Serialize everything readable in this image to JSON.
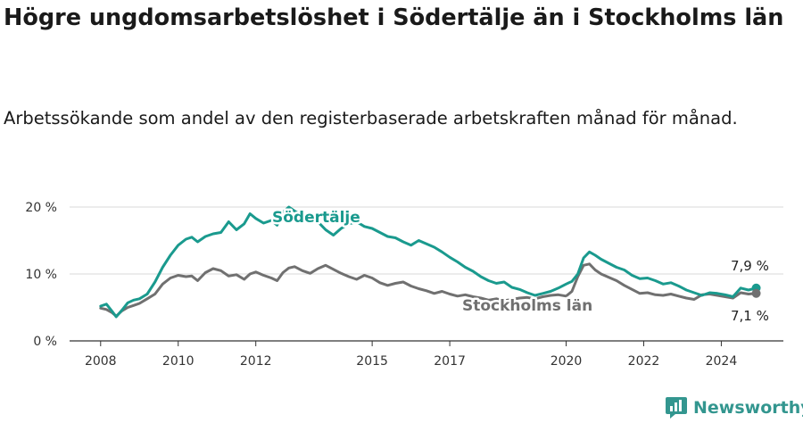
{
  "title": "Högre ungdomsarbetslöshet i Södertälje än i Stockholms län",
  "subtitle": "Arbetssökande som andel av den registerbaserade arbetskraften månad för månad.",
  "brand": {
    "name": "Newsworthy",
    "color": "#33968f"
  },
  "chart_data": {
    "type": "line",
    "y_tick_labels": [
      "0 %",
      "10 %",
      "20 %"
    ],
    "y_ticks": [
      0,
      10,
      20
    ],
    "x_tick_labels": [
      "2008",
      "2010",
      "2012",
      "2015",
      "2017",
      "2020",
      "2022",
      "2024"
    ],
    "x_ticks": [
      2008,
      2010,
      2012,
      2015,
      2017,
      2020,
      2022,
      2024
    ],
    "xlim": [
      2007.2,
      2025.6
    ],
    "ylim": [
      0,
      20
    ],
    "grid": true,
    "series": [
      {
        "name": "Södertälje",
        "color": "#1a9a8e",
        "end_label": "7,9 %",
        "points": [
          [
            2008.0,
            5.2
          ],
          [
            2008.15,
            5.5
          ],
          [
            2008.3,
            4.4
          ],
          [
            2008.4,
            3.6
          ],
          [
            2008.55,
            4.6
          ],
          [
            2008.7,
            5.7
          ],
          [
            2008.85,
            6.1
          ],
          [
            2009.0,
            6.3
          ],
          [
            2009.2,
            7.0
          ],
          [
            2009.4,
            8.8
          ],
          [
            2009.6,
            11.0
          ],
          [
            2009.8,
            12.8
          ],
          [
            2010.0,
            14.3
          ],
          [
            2010.2,
            15.2
          ],
          [
            2010.35,
            15.5
          ],
          [
            2010.5,
            14.8
          ],
          [
            2010.7,
            15.6
          ],
          [
            2010.9,
            16.0
          ],
          [
            2011.1,
            16.2
          ],
          [
            2011.3,
            17.8
          ],
          [
            2011.5,
            16.6
          ],
          [
            2011.7,
            17.5
          ],
          [
            2011.85,
            19.0
          ],
          [
            2012.0,
            18.3
          ],
          [
            2012.2,
            17.6
          ],
          [
            2012.4,
            18.0
          ],
          [
            2012.55,
            17.3
          ],
          [
            2012.7,
            19.2
          ],
          [
            2012.85,
            20.0
          ],
          [
            2013.0,
            19.4
          ],
          [
            2013.2,
            18.7
          ],
          [
            2013.4,
            18.2
          ],
          [
            2013.6,
            17.8
          ],
          [
            2013.8,
            16.6
          ],
          [
            2014.0,
            15.8
          ],
          [
            2014.2,
            16.8
          ],
          [
            2014.4,
            17.5
          ],
          [
            2014.6,
            17.8
          ],
          [
            2014.8,
            17.1
          ],
          [
            2015.0,
            16.8
          ],
          [
            2015.2,
            16.2
          ],
          [
            2015.4,
            15.6
          ],
          [
            2015.6,
            15.4
          ],
          [
            2015.8,
            14.8
          ],
          [
            2016.0,
            14.3
          ],
          [
            2016.2,
            15.0
          ],
          [
            2016.4,
            14.5
          ],
          [
            2016.6,
            14.0
          ],
          [
            2016.8,
            13.3
          ],
          [
            2017.0,
            12.5
          ],
          [
            2017.2,
            11.8
          ],
          [
            2017.4,
            11.0
          ],
          [
            2017.6,
            10.4
          ],
          [
            2017.8,
            9.6
          ],
          [
            2018.0,
            9.0
          ],
          [
            2018.2,
            8.6
          ],
          [
            2018.4,
            8.8
          ],
          [
            2018.6,
            8.0
          ],
          [
            2018.8,
            7.7
          ],
          [
            2019.0,
            7.2
          ],
          [
            2019.2,
            6.8
          ],
          [
            2019.4,
            7.1
          ],
          [
            2019.6,
            7.4
          ],
          [
            2019.8,
            7.9
          ],
          [
            2020.0,
            8.5
          ],
          [
            2020.15,
            8.9
          ],
          [
            2020.3,
            10.0
          ],
          [
            2020.45,
            12.4
          ],
          [
            2020.6,
            13.3
          ],
          [
            2020.75,
            12.8
          ],
          [
            2020.9,
            12.2
          ],
          [
            2021.1,
            11.6
          ],
          [
            2021.3,
            11.0
          ],
          [
            2021.5,
            10.6
          ],
          [
            2021.7,
            9.8
          ],
          [
            2021.9,
            9.3
          ],
          [
            2022.1,
            9.4
          ],
          [
            2022.3,
            9.0
          ],
          [
            2022.5,
            8.5
          ],
          [
            2022.7,
            8.7
          ],
          [
            2022.9,
            8.2
          ],
          [
            2023.1,
            7.6
          ],
          [
            2023.3,
            7.2
          ],
          [
            2023.5,
            6.8
          ],
          [
            2023.7,
            7.2
          ],
          [
            2023.9,
            7.1
          ],
          [
            2024.1,
            6.9
          ],
          [
            2024.3,
            6.6
          ],
          [
            2024.5,
            7.9
          ],
          [
            2024.7,
            7.6
          ],
          [
            2024.9,
            7.9
          ]
        ]
      },
      {
        "name": "Stockholms län",
        "color": "#707070",
        "end_label": "7,1 %",
        "points": [
          [
            2008.0,
            4.9
          ],
          [
            2008.15,
            4.7
          ],
          [
            2008.3,
            4.2
          ],
          [
            2008.4,
            3.7
          ],
          [
            2008.55,
            4.5
          ],
          [
            2008.7,
            5.0
          ],
          [
            2008.85,
            5.3
          ],
          [
            2009.0,
            5.6
          ],
          [
            2009.2,
            6.3
          ],
          [
            2009.4,
            7.0
          ],
          [
            2009.6,
            8.5
          ],
          [
            2009.8,
            9.4
          ],
          [
            2010.0,
            9.8
          ],
          [
            2010.2,
            9.6
          ],
          [
            2010.35,
            9.7
          ],
          [
            2010.5,
            9.0
          ],
          [
            2010.7,
            10.2
          ],
          [
            2010.9,
            10.8
          ],
          [
            2011.1,
            10.5
          ],
          [
            2011.3,
            9.7
          ],
          [
            2011.5,
            9.9
          ],
          [
            2011.7,
            9.2
          ],
          [
            2011.85,
            10.0
          ],
          [
            2012.0,
            10.3
          ],
          [
            2012.2,
            9.8
          ],
          [
            2012.4,
            9.4
          ],
          [
            2012.55,
            9.0
          ],
          [
            2012.7,
            10.2
          ],
          [
            2012.85,
            10.9
          ],
          [
            2013.0,
            11.1
          ],
          [
            2013.2,
            10.5
          ],
          [
            2013.4,
            10.1
          ],
          [
            2013.6,
            10.8
          ],
          [
            2013.8,
            11.3
          ],
          [
            2014.0,
            10.7
          ],
          [
            2014.2,
            10.1
          ],
          [
            2014.4,
            9.6
          ],
          [
            2014.6,
            9.2
          ],
          [
            2014.8,
            9.8
          ],
          [
            2015.0,
            9.4
          ],
          [
            2015.2,
            8.7
          ],
          [
            2015.4,
            8.3
          ],
          [
            2015.6,
            8.6
          ],
          [
            2015.8,
            8.8
          ],
          [
            2016.0,
            8.2
          ],
          [
            2016.2,
            7.8
          ],
          [
            2016.4,
            7.5
          ],
          [
            2016.6,
            7.1
          ],
          [
            2016.8,
            7.4
          ],
          [
            2017.0,
            7.0
          ],
          [
            2017.2,
            6.7
          ],
          [
            2017.4,
            6.9
          ],
          [
            2017.6,
            6.6
          ],
          [
            2017.8,
            6.4
          ],
          [
            2018.0,
            6.1
          ],
          [
            2018.2,
            6.3
          ],
          [
            2018.4,
            6.0
          ],
          [
            2018.6,
            6.2
          ],
          [
            2018.8,
            6.4
          ],
          [
            2019.0,
            6.5
          ],
          [
            2019.2,
            6.3
          ],
          [
            2019.4,
            6.6
          ],
          [
            2019.6,
            6.8
          ],
          [
            2019.8,
            6.9
          ],
          [
            2020.0,
            6.7
          ],
          [
            2020.15,
            7.4
          ],
          [
            2020.3,
            9.6
          ],
          [
            2020.45,
            11.3
          ],
          [
            2020.6,
            11.5
          ],
          [
            2020.75,
            10.6
          ],
          [
            2020.9,
            10.0
          ],
          [
            2021.1,
            9.5
          ],
          [
            2021.3,
            9.0
          ],
          [
            2021.5,
            8.3
          ],
          [
            2021.7,
            7.7
          ],
          [
            2021.9,
            7.1
          ],
          [
            2022.1,
            7.2
          ],
          [
            2022.3,
            6.9
          ],
          [
            2022.5,
            6.8
          ],
          [
            2022.7,
            7.0
          ],
          [
            2022.9,
            6.7
          ],
          [
            2023.1,
            6.4
          ],
          [
            2023.3,
            6.2
          ],
          [
            2023.5,
            6.9
          ],
          [
            2023.7,
            7.0
          ],
          [
            2023.9,
            6.8
          ],
          [
            2024.1,
            6.6
          ],
          [
            2024.3,
            6.4
          ],
          [
            2024.5,
            7.2
          ],
          [
            2024.7,
            7.0
          ],
          [
            2024.9,
            7.1
          ]
        ]
      }
    ]
  }
}
